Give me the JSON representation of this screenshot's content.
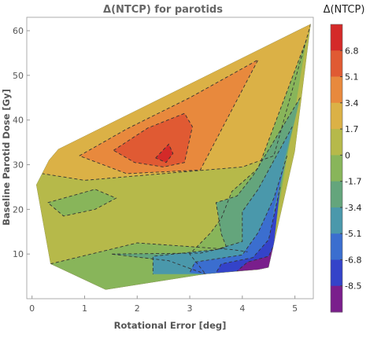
{
  "chart_data": {
    "type": "contour",
    "title": "Δ(NTCP) for parotids",
    "xlabel": "Rotational Error [deg]",
    "ylabel": "Baseline Parotid Dose [Gy]",
    "xlim": [
      -0.1,
      5.35
    ],
    "ylim": [
      0,
      63
    ],
    "x_ticks": [
      "0",
      "1",
      "2",
      "3",
      "4",
      "5"
    ],
    "y_ticks": [
      "10",
      "20",
      "30",
      "40",
      "50",
      "60"
    ],
    "grid": false,
    "legend": {
      "title": "Δ(NTCP)",
      "position": "right",
      "levels": [
        "6.8",
        "5.1",
        "3.4",
        "1.7",
        "0",
        "-1.7",
        "-3.4",
        "-5.1",
        "-6.8",
        "-8.5"
      ],
      "colors": [
        "#d42a29",
        "#e05a33",
        "#e8893d",
        "#dbb146",
        "#b6b94a",
        "#88b55a",
        "#64a57c",
        "#4a98ab",
        "#3b6ecf",
        "#3443c9",
        "#7a1e8c"
      ]
    },
    "hull": [
      [
        0.5,
        33.5
      ],
      [
        5.3,
        61.5
      ],
      [
        5.0,
        33.0
      ],
      [
        4.5,
        7.0
      ],
      [
        4.3,
        6.5
      ],
      [
        3.3,
        5.5
      ],
      [
        1.4,
        2.0
      ],
      [
        0.35,
        7.8
      ],
      [
        0.08,
        25.5
      ],
      [
        0.32,
        31.0
      ]
    ],
    "bands": [
      {
        "color": "#b6b94a",
        "points": [
          [
            0.5,
            33.5
          ],
          [
            5.3,
            61.5
          ],
          [
            5.0,
            33.0
          ],
          [
            4.5,
            7.0
          ],
          [
            4.3,
            6.5
          ],
          [
            3.3,
            5.5
          ],
          [
            1.4,
            2.0
          ],
          [
            0.35,
            7.8
          ],
          [
            0.08,
            25.5
          ],
          [
            0.32,
            31.0
          ]
        ]
      },
      {
        "color": "#dbb146",
        "points": [
          [
            0.5,
            33.5
          ],
          [
            5.3,
            61.5
          ],
          [
            4.6,
            32.0
          ],
          [
            4.0,
            29.5
          ],
          [
            3.0,
            28.5
          ],
          [
            1.0,
            26.5
          ],
          [
            0.2,
            28.0
          ],
          [
            0.32,
            31.0
          ]
        ]
      },
      {
        "color": "#e8893d",
        "points": [
          [
            0.9,
            32.0
          ],
          [
            1.8,
            38.0
          ],
          [
            3.0,
            45.0
          ],
          [
            4.3,
            53.5
          ],
          [
            3.2,
            28.8
          ],
          [
            1.8,
            28.0
          ]
        ]
      },
      {
        "color": "#e05a33",
        "points": [
          [
            1.55,
            33.2
          ],
          [
            2.2,
            38.2
          ],
          [
            2.9,
            41.5
          ],
          [
            3.05,
            38.5
          ],
          [
            2.9,
            30.5
          ],
          [
            2.5,
            29.5
          ],
          [
            1.95,
            30.5
          ]
        ]
      },
      {
        "color": "#d42a29",
        "points": [
          [
            2.35,
            31.5
          ],
          [
            2.6,
            34.6
          ],
          [
            2.68,
            32.5
          ],
          [
            2.55,
            30.5
          ]
        ]
      },
      {
        "color": "#88b55a",
        "points": [
          [
            5.22,
            58.0
          ],
          [
            4.9,
            35.0
          ],
          [
            4.5,
            6.8
          ],
          [
            3.3,
            5.5
          ],
          [
            3.0,
            10.0
          ],
          [
            3.4,
            14.8
          ],
          [
            3.6,
            18.0
          ],
          [
            3.8,
            24.0
          ],
          [
            4.3,
            29.2
          ]
        ]
      },
      {
        "color": "#88b55a",
        "points": [
          [
            0.3,
            21.5
          ],
          [
            1.2,
            24.5
          ],
          [
            1.6,
            22.5
          ],
          [
            1.2,
            20.0
          ],
          [
            0.6,
            18.5
          ]
        ]
      },
      {
        "color": "#88b55a",
        "points": [
          [
            0.35,
            7.8
          ],
          [
            2.0,
            12.5
          ],
          [
            3.8,
            11.0
          ],
          [
            3.3,
            5.5
          ],
          [
            1.4,
            2.0
          ]
        ]
      },
      {
        "color": "#64a57c",
        "points": [
          [
            5.1,
            45.0
          ],
          [
            4.8,
            30.0
          ],
          [
            4.5,
            6.8
          ],
          [
            3.3,
            5.5
          ],
          [
            2.6,
            8.5
          ],
          [
            1.5,
            10.0
          ],
          [
            3.2,
            10.2
          ],
          [
            3.7,
            11.5
          ],
          [
            3.6,
            14.5
          ],
          [
            3.5,
            21.5
          ],
          [
            3.9,
            23.0
          ],
          [
            4.2,
            27.5
          ]
        ]
      },
      {
        "color": "#4a98ab",
        "points": [
          [
            4.95,
            38.5
          ],
          [
            4.7,
            26.0
          ],
          [
            4.5,
            6.8
          ],
          [
            3.3,
            5.5
          ],
          [
            2.3,
            5.5
          ],
          [
            2.3,
            9.5
          ],
          [
            3.5,
            11.0
          ],
          [
            4.0,
            12.8
          ],
          [
            4.0,
            19.5
          ],
          [
            4.3,
            24.5
          ]
        ]
      },
      {
        "color": "#3b6ecf",
        "points": [
          [
            4.85,
            32.0
          ],
          [
            4.6,
            20.0
          ],
          [
            4.5,
            6.8
          ],
          [
            3.3,
            5.5
          ],
          [
            3.0,
            5.8
          ],
          [
            3.1,
            8.2
          ],
          [
            4.0,
            9.8
          ],
          [
            4.3,
            14.8
          ],
          [
            4.6,
            22.5
          ]
        ]
      },
      {
        "color": "#3443c9",
        "points": [
          [
            4.72,
            25.0
          ],
          [
            4.55,
            6.8
          ],
          [
            4.3,
            6.5
          ],
          [
            3.5,
            5.8
          ],
          [
            3.6,
            7.8
          ],
          [
            4.2,
            9.2
          ],
          [
            4.5,
            13.2
          ]
        ]
      },
      {
        "color": "#7a1e8c",
        "points": [
          [
            4.58,
            11.5
          ],
          [
            4.5,
            6.8
          ],
          [
            4.3,
            6.5
          ],
          [
            3.9,
            6.2
          ],
          [
            4.1,
            8.2
          ],
          [
            4.5,
            9.5
          ]
        ]
      }
    ],
    "contour_lines": [
      [
        [
          5.3,
          61.5
        ],
        [
          4.6,
          32.0
        ],
        [
          4.0,
          29.5
        ],
        [
          3.0,
          28.5
        ],
        [
          1.0,
          26.5
        ],
        [
          0.2,
          28.0
        ]
      ],
      [
        [
          0.9,
          32.0
        ],
        [
          1.8,
          38.0
        ],
        [
          3.0,
          45.0
        ],
        [
          4.3,
          53.5
        ],
        [
          3.2,
          28.8
        ],
        [
          1.8,
          28.0
        ],
        [
          0.9,
          32.0
        ]
      ],
      [
        [
          1.55,
          33.2
        ],
        [
          2.2,
          38.2
        ],
        [
          2.9,
          41.5
        ],
        [
          3.05,
          38.5
        ],
        [
          2.9,
          30.5
        ],
        [
          2.5,
          29.5
        ],
        [
          1.95,
          30.5
        ],
        [
          1.55,
          33.2
        ]
      ],
      [
        [
          2.35,
          31.5
        ],
        [
          2.6,
          34.6
        ],
        [
          2.68,
          32.5
        ],
        [
          2.55,
          30.5
        ],
        [
          2.35,
          31.5
        ]
      ],
      [
        [
          5.22,
          58.0
        ],
        [
          4.3,
          29.2
        ],
        [
          3.8,
          24.0
        ],
        [
          3.6,
          18.0
        ],
        [
          3.4,
          14.8
        ],
        [
          3.0,
          10.0
        ],
        [
          3.3,
          5.5
        ]
      ],
      [
        [
          0.3,
          21.5
        ],
        [
          1.2,
          24.5
        ],
        [
          1.6,
          22.5
        ],
        [
          1.2,
          20.0
        ],
        [
          0.6,
          18.5
        ],
        [
          0.3,
          21.5
        ]
      ],
      [
        [
          0.35,
          7.8
        ],
        [
          2.0,
          12.5
        ],
        [
          3.8,
          11.0
        ],
        [
          4.1,
          10.5
        ]
      ],
      [
        [
          5.1,
          45.0
        ],
        [
          4.2,
          27.5
        ],
        [
          3.9,
          23.0
        ],
        [
          3.5,
          21.5
        ],
        [
          3.6,
          14.5
        ],
        [
          3.7,
          11.5
        ],
        [
          3.2,
          10.2
        ],
        [
          1.5,
          10.0
        ],
        [
          2.6,
          8.5
        ],
        [
          3.3,
          5.5
        ]
      ],
      [
        [
          4.95,
          38.5
        ],
        [
          4.3,
          24.5
        ],
        [
          4.0,
          19.5
        ],
        [
          4.0,
          12.8
        ],
        [
          3.5,
          11.0
        ],
        [
          2.3,
          9.5
        ],
        [
          2.3,
          5.5
        ]
      ],
      [
        [
          4.85,
          32.0
        ],
        [
          4.6,
          22.5
        ],
        [
          4.3,
          14.8
        ],
        [
          4.0,
          9.8
        ],
        [
          3.1,
          8.2
        ],
        [
          3.0,
          5.8
        ]
      ],
      [
        [
          4.72,
          25.0
        ],
        [
          4.5,
          13.2
        ],
        [
          4.2,
          9.2
        ],
        [
          3.6,
          7.8
        ],
        [
          3.5,
          5.8
        ]
      ],
      [
        [
          4.58,
          11.5
        ],
        [
          4.5,
          9.5
        ],
        [
          4.1,
          8.2
        ],
        [
          3.9,
          6.2
        ]
      ]
    ]
  }
}
